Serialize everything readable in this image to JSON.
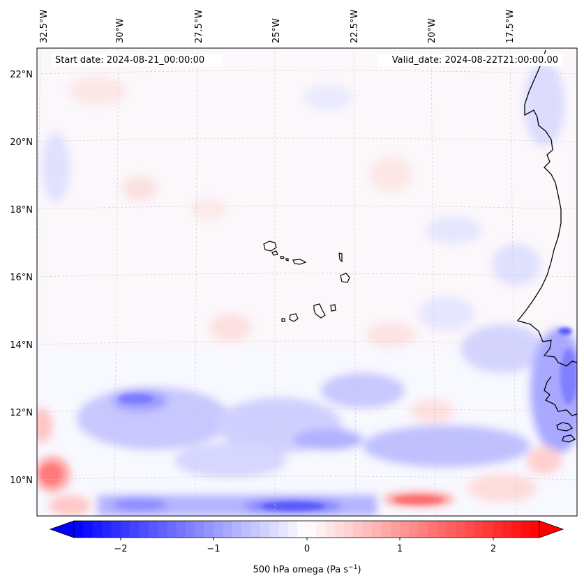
{
  "header": {
    "start_date": "Start date: 2024-08-21_00:00:00",
    "valid_date": "Valid_date: 2024-08-22T21:00:00.00"
  },
  "lon_labels": [
    "32.5°W",
    "30°W",
    "27.5°W",
    "25°W",
    "22.5°W",
    "20°W",
    "17.5°W"
  ],
  "lat_labels": [
    "22°N",
    "20°N",
    "18°N",
    "16°N",
    "14°N",
    "12°N",
    "10°N"
  ],
  "colorbar": {
    "ticks": [
      "−2",
      "−1",
      "0",
      "1",
      "2"
    ],
    "label_main": "500 hPa omega (Pa s",
    "label_sup": "−1",
    "label_end": ")",
    "min": -2.5,
    "max": 2.5,
    "extend": "both"
  },
  "colors": {
    "negative": "#0000ff",
    "zero": "#ffffff",
    "positive": "#ff0000",
    "coastline": "#000000",
    "gridline": "#bbbbbb"
  }
}
